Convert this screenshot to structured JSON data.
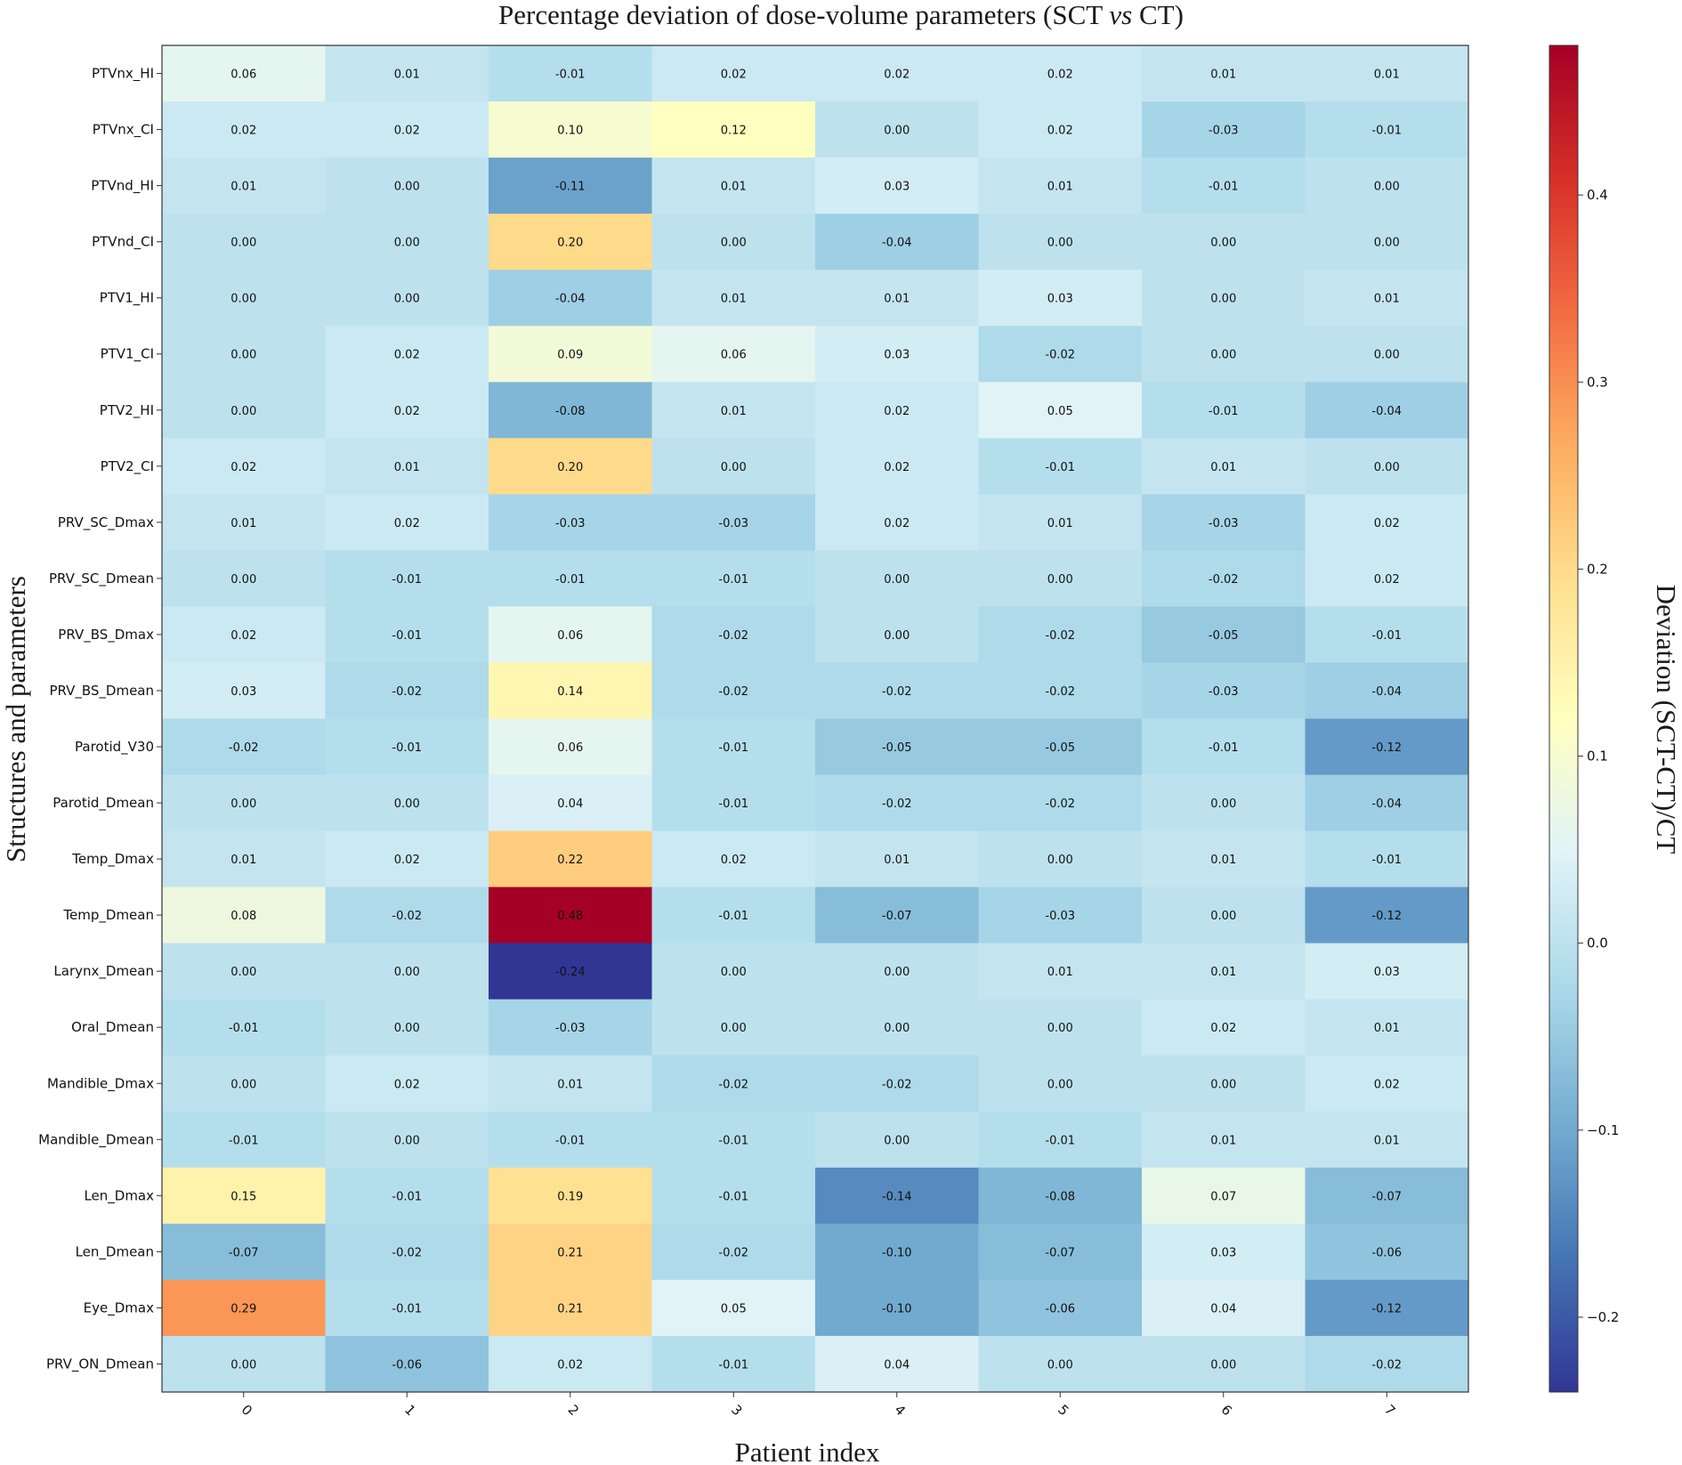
{
  "chart_data": {
    "type": "heatmap",
    "title_parts": [
      "Percentage deviation of dose-volume parameters (SCT ",
      "vs",
      " CT)"
    ],
    "xlabel": "Patient index",
    "ylabel": "Structures and parameters",
    "colorbar_label": "Deviation (SCT-CT)/CT",
    "colormap": "RdYlBu_r",
    "color_range": [
      -0.24,
      0.48
    ],
    "colorbar_ticks": [
      -0.2,
      -0.1,
      0.0,
      0.1,
      0.2,
      0.3,
      0.4
    ],
    "colorbar_tick_labels": [
      "−0.2",
      "−0.1",
      "0.0",
      "0.1",
      "0.2",
      "0.3",
      "0.4"
    ],
    "x": [
      "0",
      "1",
      "2",
      "3",
      "4",
      "5",
      "6",
      "7"
    ],
    "y": [
      "PTVnx_HI",
      "PTVnx_CI",
      "PTVnd_HI",
      "PTVnd_CI",
      "PTV1_HI",
      "PTV1_CI",
      "PTV2_HI",
      "PTV2_CI",
      "PRV_SC_Dmax",
      "PRV_SC_Dmean",
      "PRV_BS_Dmax",
      "PRV_BS_Dmean",
      "Parotid_V30",
      "Parotid_Dmean",
      "Temp_Dmax",
      "Temp_Dmean",
      "Larynx_Dmean",
      "Oral_Dmean",
      "Mandible_Dmax",
      "Mandible_Dmean",
      "Len_Dmax",
      "Len_Dmean",
      "Eye_Dmax",
      "PRV_ON_Dmean"
    ],
    "values": [
      [
        0.06,
        0.01,
        -0.01,
        0.02,
        0.02,
        0.02,
        0.01,
        0.01
      ],
      [
        0.02,
        0.02,
        0.1,
        0.12,
        0.0,
        0.02,
        -0.03,
        -0.01
      ],
      [
        0.01,
        0.0,
        -0.11,
        0.01,
        0.03,
        0.01,
        -0.01,
        0.0
      ],
      [
        0.0,
        0.0,
        0.2,
        0.0,
        -0.04,
        0.0,
        0.0,
        0.0
      ],
      [
        0.0,
        0.0,
        -0.04,
        0.01,
        0.01,
        0.03,
        0.0,
        0.01
      ],
      [
        0.0,
        0.02,
        0.09,
        0.06,
        0.03,
        -0.02,
        0.0,
        0.0
      ],
      [
        0.0,
        0.02,
        -0.08,
        0.01,
        0.02,
        0.05,
        -0.01,
        -0.04
      ],
      [
        0.02,
        0.01,
        0.2,
        0.0,
        0.02,
        -0.01,
        0.01,
        0.0
      ],
      [
        0.01,
        0.02,
        -0.03,
        -0.03,
        0.02,
        0.01,
        -0.03,
        0.02
      ],
      [
        0.0,
        -0.01,
        -0.01,
        -0.01,
        0.0,
        0.0,
        -0.02,
        0.02
      ],
      [
        0.02,
        -0.01,
        0.06,
        -0.02,
        0.0,
        -0.02,
        -0.05,
        -0.01
      ],
      [
        0.03,
        -0.02,
        0.14,
        -0.02,
        -0.02,
        -0.02,
        -0.03,
        -0.04
      ],
      [
        -0.02,
        -0.01,
        0.06,
        -0.01,
        -0.05,
        -0.05,
        -0.01,
        -0.12
      ],
      [
        0.0,
        0.0,
        0.04,
        -0.01,
        -0.02,
        -0.02,
        0.0,
        -0.04
      ],
      [
        0.01,
        0.02,
        0.22,
        0.02,
        0.01,
        0.0,
        0.01,
        -0.01
      ],
      [
        0.08,
        -0.02,
        0.48,
        -0.01,
        -0.07,
        -0.03,
        0.0,
        -0.12
      ],
      [
        0.0,
        0.0,
        -0.24,
        0.0,
        0.0,
        0.01,
        0.01,
        0.03
      ],
      [
        -0.01,
        0.0,
        -0.03,
        0.0,
        0.0,
        0.0,
        0.02,
        0.01
      ],
      [
        0.0,
        0.02,
        0.01,
        -0.02,
        -0.02,
        0.0,
        0.0,
        0.02
      ],
      [
        -0.01,
        0.0,
        -0.01,
        -0.01,
        0.0,
        -0.01,
        0.01,
        0.01
      ],
      [
        0.15,
        -0.01,
        0.19,
        -0.01,
        -0.14,
        -0.08,
        0.07,
        -0.07
      ],
      [
        -0.07,
        -0.02,
        0.21,
        -0.02,
        -0.1,
        -0.07,
        0.03,
        -0.06
      ],
      [
        0.29,
        -0.01,
        0.21,
        0.05,
        -0.1,
        -0.06,
        0.04,
        -0.12
      ],
      [
        0.0,
        -0.06,
        0.02,
        -0.01,
        0.04,
        0.0,
        0.0,
        -0.02
      ]
    ],
    "grid": false,
    "annotations": true,
    "annotation_format": "0.00"
  }
}
